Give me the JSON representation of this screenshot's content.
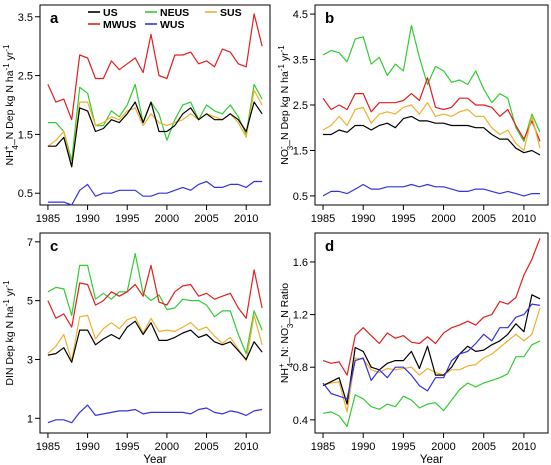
{
  "colors": {
    "US": "#000000",
    "NEUS": "#33cc33",
    "SUS": "#f0b030",
    "MWUS": "#e02020",
    "WUS": "#3333e0"
  },
  "legend": [
    {
      "key": "US",
      "label": "US"
    },
    {
      "key": "NEUS",
      "label": "NEUS"
    },
    {
      "key": "SUS",
      "label": "SUS"
    },
    {
      "key": "MWUS",
      "label": "MWUS"
    },
    {
      "key": "WUS",
      "label": "WUS"
    }
  ],
  "chart_data": [
    {
      "panel": "a",
      "type": "line",
      "ylabel": {
        "pre": "NH",
        "sup": "+",
        "sub": "4",
        "post": "_N Dep  kg N ha",
        "sup2": "-1",
        "post2": " yr",
        "sup3": "-1"
      },
      "xlabel": "",
      "xlim": [
        1984,
        2013
      ],
      "ylim": [
        0.3,
        3.7
      ],
      "xticks": [
        "1985",
        "1990",
        "1995",
        "2000",
        "2005",
        "2010"
      ],
      "yticks": [
        "0.5",
        "1.5",
        "2.5",
        "3.5"
      ],
      "x": [
        1985,
        1986,
        1987,
        1988,
        1989,
        1990,
        1991,
        1992,
        1993,
        1994,
        1995,
        1996,
        1997,
        1998,
        1999,
        2000,
        2001,
        2002,
        2003,
        2004,
        2005,
        2006,
        2007,
        2008,
        2009,
        2010,
        2011,
        2012
      ],
      "series": [
        {
          "name": "MWUS",
          "values": [
            2.35,
            2.05,
            2.1,
            1.75,
            2.85,
            2.8,
            2.45,
            2.45,
            2.75,
            2.6,
            2.7,
            2.8,
            2.55,
            3.2,
            2.5,
            2.45,
            2.85,
            2.85,
            2.9,
            2.7,
            2.75,
            2.65,
            2.95,
            2.9,
            2.7,
            2.65,
            3.55,
            3.0
          ]
        },
        {
          "name": "NEUS",
          "values": [
            1.7,
            1.7,
            1.55,
            1.05,
            2.3,
            2.2,
            1.65,
            1.65,
            1.9,
            1.8,
            2.0,
            2.35,
            1.7,
            2.05,
            1.85,
            1.4,
            1.75,
            2.0,
            2.05,
            1.75,
            2.0,
            1.9,
            1.85,
            2.0,
            1.8,
            1.5,
            2.35,
            2.1
          ]
        },
        {
          "name": "SUS",
          "values": [
            1.3,
            1.4,
            1.55,
            0.95,
            2.05,
            2.05,
            1.65,
            1.7,
            1.8,
            1.75,
            1.9,
            1.95,
            1.65,
            1.85,
            1.7,
            1.65,
            1.7,
            1.75,
            1.85,
            1.75,
            1.85,
            1.8,
            1.75,
            1.85,
            1.7,
            1.45,
            2.25,
            2.0
          ]
        },
        {
          "name": "US",
          "values": [
            1.3,
            1.3,
            1.45,
            0.95,
            1.95,
            1.9,
            1.55,
            1.6,
            1.75,
            1.7,
            1.85,
            2.05,
            1.7,
            2.05,
            1.55,
            1.55,
            1.65,
            1.85,
            1.95,
            1.75,
            1.85,
            1.75,
            1.75,
            1.85,
            1.75,
            1.55,
            2.05,
            1.85
          ]
        },
        {
          "name": "WUS",
          "values": [
            0.35,
            0.35,
            0.35,
            0.3,
            0.55,
            0.65,
            0.45,
            0.5,
            0.5,
            0.55,
            0.55,
            0.55,
            0.45,
            0.45,
            0.5,
            0.5,
            0.55,
            0.6,
            0.55,
            0.65,
            0.7,
            0.6,
            0.6,
            0.65,
            0.65,
            0.6,
            0.7,
            0.7
          ]
        }
      ]
    },
    {
      "panel": "b",
      "type": "line",
      "ylabel": {
        "pre": "NO",
        "sup": "-",
        "sub": "3",
        "post": "_N Dep  kg N ha",
        "sup2": "-1",
        "post2": " yr",
        "sup3": "-1"
      },
      "xlabel": "",
      "xlim": [
        1984,
        2013
      ],
      "ylim": [
        0.3,
        4.7
      ],
      "xticks": [
        "1985",
        "1990",
        "1995",
        "2000",
        "2005",
        "2010"
      ],
      "yticks": [
        "0.5",
        "1.5",
        "2.5",
        "3.5",
        "4.5"
      ],
      "x": [
        1985,
        1986,
        1987,
        1988,
        1989,
        1990,
        1991,
        1992,
        1993,
        1994,
        1995,
        1996,
        1997,
        1998,
        1999,
        2000,
        2001,
        2002,
        2003,
        2004,
        2005,
        2006,
        2007,
        2008,
        2009,
        2010,
        2011,
        2012
      ],
      "series": [
        {
          "name": "NEUS",
          "values": [
            3.6,
            3.7,
            3.65,
            3.45,
            3.95,
            4.0,
            3.4,
            3.55,
            3.15,
            3.4,
            3.25,
            4.25,
            3.55,
            2.95,
            3.35,
            3.25,
            3.0,
            3.05,
            2.95,
            3.25,
            2.85,
            2.55,
            2.75,
            2.65,
            2.0,
            1.7,
            2.3,
            1.9
          ]
        },
        {
          "name": "MWUS",
          "values": [
            2.65,
            2.4,
            2.5,
            2.4,
            2.75,
            2.75,
            2.35,
            2.55,
            2.55,
            2.55,
            2.6,
            2.75,
            2.6,
            3.1,
            2.45,
            2.4,
            2.45,
            2.65,
            2.65,
            2.5,
            2.5,
            2.45,
            2.25,
            2.4,
            2.05,
            1.75,
            2.15,
            1.7
          ]
        },
        {
          "name": "SUS",
          "values": [
            1.95,
            2.05,
            2.25,
            2.05,
            2.4,
            2.45,
            2.1,
            2.3,
            2.35,
            2.3,
            2.45,
            2.5,
            2.3,
            2.55,
            2.25,
            2.3,
            2.25,
            2.35,
            2.4,
            2.25,
            2.25,
            2.0,
            1.85,
            1.95,
            1.65,
            1.5,
            2.25,
            1.55
          ]
        },
        {
          "name": "US",
          "values": [
            1.85,
            1.85,
            1.95,
            1.9,
            2.05,
            2.05,
            1.95,
            2.05,
            2.1,
            2.0,
            2.2,
            2.25,
            2.15,
            2.15,
            2.1,
            2.1,
            2.05,
            2.05,
            2.05,
            2.0,
            2.0,
            1.85,
            1.75,
            1.75,
            1.55,
            1.45,
            1.5,
            1.4
          ]
        },
        {
          "name": "WUS",
          "values": [
            0.5,
            0.6,
            0.6,
            0.55,
            0.65,
            0.75,
            0.65,
            0.65,
            0.7,
            0.7,
            0.7,
            0.75,
            0.7,
            0.75,
            0.7,
            0.7,
            0.65,
            0.6,
            0.6,
            0.65,
            0.65,
            0.6,
            0.55,
            0.6,
            0.55,
            0.5,
            0.55,
            0.55
          ]
        }
      ]
    },
    {
      "panel": "c",
      "type": "line",
      "ylabel": {
        "pre": "DIN Dep  kg N ha",
        "sup2": "-1",
        "post2": " yr",
        "sup3": "-1"
      },
      "xlabel": "Year",
      "xlim": [
        1984,
        2013
      ],
      "ylim": [
        0.5,
        7.3
      ],
      "xticks": [
        "1985",
        "1990",
        "1995",
        "2000",
        "2005",
        "2010"
      ],
      "yticks": [
        "1",
        "3",
        "5",
        "7"
      ],
      "x": [
        1985,
        1986,
        1987,
        1988,
        1989,
        1990,
        1991,
        1992,
        1993,
        1994,
        1995,
        1996,
        1997,
        1998,
        1999,
        2000,
        2001,
        2002,
        2003,
        2004,
        2005,
        2006,
        2007,
        2008,
        2009,
        2010,
        2011,
        2012
      ],
      "series": [
        {
          "name": "NEUS",
          "values": [
            5.3,
            5.45,
            5.4,
            4.5,
            6.2,
            6.2,
            5.05,
            5.25,
            5.05,
            5.3,
            5.3,
            6.6,
            5.25,
            5.0,
            5.2,
            4.7,
            4.75,
            5.05,
            5.0,
            5.0,
            4.85,
            4.45,
            4.65,
            4.65,
            3.85,
            3.2,
            4.65,
            4.0
          ]
        },
        {
          "name": "MWUS",
          "values": [
            5.0,
            4.4,
            4.55,
            4.1,
            5.6,
            5.55,
            4.85,
            5.0,
            5.3,
            5.15,
            5.3,
            5.55,
            5.15,
            6.2,
            4.95,
            4.85,
            5.3,
            5.5,
            5.55,
            5.15,
            5.25,
            5.05,
            5.15,
            5.25,
            4.75,
            4.4,
            6.05,
            4.75
          ]
        },
        {
          "name": "SUS",
          "values": [
            3.2,
            3.45,
            3.85,
            2.95,
            4.45,
            4.5,
            3.7,
            4.05,
            4.25,
            4.05,
            4.35,
            4.45,
            3.9,
            4.4,
            3.95,
            4.0,
            3.95,
            4.1,
            4.25,
            4.0,
            4.1,
            3.8,
            3.55,
            3.75,
            3.35,
            2.95,
            4.5,
            3.5
          ]
        },
        {
          "name": "US",
          "values": [
            3.15,
            3.2,
            3.4,
            2.9,
            4.0,
            4.0,
            3.5,
            3.7,
            3.85,
            3.7,
            4.1,
            4.3,
            3.85,
            4.25,
            3.65,
            3.65,
            3.75,
            3.9,
            4.0,
            3.75,
            3.85,
            3.6,
            3.5,
            3.6,
            3.3,
            3.0,
            3.6,
            3.25
          ]
        },
        {
          "name": "WUS",
          "values": [
            0.85,
            0.95,
            0.95,
            0.85,
            1.2,
            1.45,
            1.1,
            1.15,
            1.2,
            1.25,
            1.25,
            1.3,
            1.15,
            1.2,
            1.2,
            1.2,
            1.2,
            1.2,
            1.15,
            1.3,
            1.35,
            1.2,
            1.15,
            1.25,
            1.2,
            1.1,
            1.25,
            1.3
          ]
        }
      ]
    },
    {
      "panel": "d",
      "type": "line",
      "ylabel": {
        "pre": "NH",
        "sup": "+",
        "sub": "4",
        "post": "_N: NO",
        "sup4": "-",
        "sub4": "3",
        "post4": "_N Ratio"
      },
      "xlabel": "Year",
      "xlim": [
        1984,
        2013
      ],
      "ylim": [
        0.3,
        1.82
      ],
      "xticks": [
        "1985",
        "1990",
        "1995",
        "2000",
        "2005",
        "2010"
      ],
      "yticks": [
        "0.4",
        "0.8",
        "1.2",
        "1.6"
      ],
      "x": [
        1985,
        1986,
        1987,
        1988,
        1989,
        1990,
        1991,
        1992,
        1993,
        1994,
        1995,
        1996,
        1997,
        1998,
        1999,
        2000,
        2001,
        2002,
        2003,
        2004,
        2005,
        2006,
        2007,
        2008,
        2009,
        2010,
        2011,
        2012
      ],
      "series": [
        {
          "name": "MWUS",
          "values": [
            0.85,
            0.83,
            0.84,
            0.74,
            1.04,
            1.1,
            1.04,
            0.98,
            1.06,
            1.02,
            1.04,
            0.99,
            0.98,
            1.03,
            0.98,
            1.06,
            1.1,
            1.12,
            1.15,
            1.12,
            1.18,
            1.2,
            1.3,
            1.28,
            1.33,
            1.5,
            1.62,
            1.78
          ]
        },
        {
          "name": "SUS",
          "values": [
            0.66,
            0.68,
            0.69,
            0.46,
            0.87,
            0.86,
            0.78,
            0.76,
            0.79,
            0.78,
            0.79,
            0.8,
            0.74,
            0.79,
            0.76,
            0.74,
            0.78,
            0.78,
            0.81,
            0.82,
            0.87,
            0.9,
            0.95,
            1.0,
            1.05,
            1.0,
            1.05,
            1.25
          ]
        },
        {
          "name": "US",
          "values": [
            0.66,
            0.69,
            0.72,
            0.52,
            0.95,
            0.92,
            0.8,
            0.78,
            0.83,
            0.85,
            0.85,
            0.92,
            0.79,
            0.96,
            0.74,
            0.74,
            0.8,
            0.9,
            0.96,
            0.92,
            0.93,
            0.97,
            1.0,
            1.05,
            1.13,
            1.07,
            1.35,
            1.32
          ]
        },
        {
          "name": "WUS",
          "values": [
            0.68,
            0.6,
            0.58,
            0.56,
            0.85,
            0.87,
            0.7,
            0.78,
            0.72,
            0.8,
            0.8,
            0.74,
            0.66,
            0.62,
            0.72,
            0.72,
            0.85,
            0.9,
            0.92,
            0.98,
            1.05,
            1.0,
            1.1,
            1.1,
            1.18,
            1.2,
            1.28,
            1.27
          ]
        },
        {
          "name": "NEUS",
          "values": [
            0.45,
            0.46,
            0.43,
            0.35,
            0.59,
            0.56,
            0.5,
            0.48,
            0.52,
            0.5,
            0.58,
            0.55,
            0.49,
            0.52,
            0.53,
            0.47,
            0.55,
            0.63,
            0.68,
            0.65,
            0.68,
            0.7,
            0.72,
            0.75,
            0.88,
            0.88,
            0.97,
            1.0
          ]
        }
      ]
    }
  ]
}
